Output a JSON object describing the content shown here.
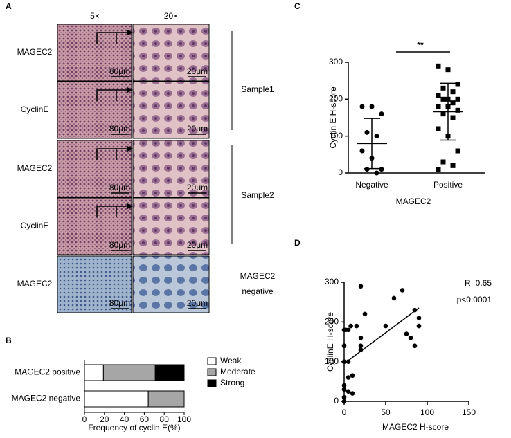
{
  "panel_a": {
    "label": "A",
    "columns": [
      "5×",
      "20×"
    ],
    "rows": [
      "MAGEC2",
      "CyclinE",
      "MAGEC2",
      "CyclinE",
      "MAGEC2"
    ],
    "scale_bars": [
      "80μm",
      "20μm"
    ],
    "groups": [
      "Sample1",
      "Sample2",
      [
        "MAGEC2",
        "negative"
      ]
    ]
  },
  "chart_data": [
    {
      "type": "stacked_bar_h",
      "panel_label": "B",
      "categories": [
        "MAGEC2 positive",
        "MAGEC2 negative"
      ],
      "series": [
        {
          "name": "Weak",
          "color": "#ffffff",
          "values": [
            19,
            64
          ]
        },
        {
          "name": "Moderate",
          "color": "#a6a6a6",
          "values": [
            52,
            36
          ]
        },
        {
          "name": "Strong",
          "color": "#000000",
          "values": [
            29,
            0
          ]
        }
      ],
      "xlim": [
        0,
        100
      ],
      "xticks": [
        0,
        20,
        40,
        60,
        80,
        100
      ],
      "xlabel": "Frequency of cyclin E(%)",
      "legend": "right"
    },
    {
      "type": "dot_plot",
      "panel_label": "C",
      "categories": [
        "Negative",
        "Positive"
      ],
      "groups": [
        {
          "marker": "circle",
          "values": [
            180,
            180,
            160,
            110,
            100,
            60,
            40,
            10,
            10,
            0
          ],
          "mean": 80,
          "sd": 68
        },
        {
          "marker": "square",
          "values": [
            290,
            280,
            240,
            230,
            220,
            210,
            200,
            200,
            200,
            190,
            180,
            180,
            170,
            160,
            150,
            120,
            100,
            60,
            30,
            20,
            10
          ],
          "mean": 166,
          "sd": 77
        }
      ],
      "ylim": [
        0,
        300
      ],
      "yticks": [
        0,
        100,
        200,
        300
      ],
      "ylabel": "Cyclin E H-score",
      "xlabel": "MAGEC2",
      "significance": "**"
    },
    {
      "type": "scatter",
      "panel_label": "D",
      "x": [
        0,
        0,
        0,
        0,
        0,
        0,
        0,
        2,
        5,
        5,
        5,
        5,
        8,
        10,
        15,
        20,
        20,
        20,
        20,
        25,
        50,
        60,
        70,
        80,
        85,
        85,
        90,
        90,
        75,
        10
      ],
      "y": [
        0,
        10,
        30,
        40,
        100,
        140,
        180,
        180,
        180,
        100,
        60,
        25,
        190,
        20,
        190,
        290,
        140,
        130,
        160,
        220,
        190,
        260,
        280,
        160,
        230,
        140,
        190,
        210,
        170,
        65
      ],
      "fit": {
        "slope": 1.56,
        "intercept": 95
      },
      "xlim": [
        0,
        150
      ],
      "xticks": [
        0,
        50,
        100,
        150
      ],
      "ylim": [
        0,
        300
      ],
      "yticks": [
        0,
        100,
        200,
        300
      ],
      "xlabel": "MAGEC2 H-score",
      "ylabel": "CyclinE H-score",
      "annotations": [
        "R=0.65",
        "p<0.0001"
      ]
    }
  ]
}
